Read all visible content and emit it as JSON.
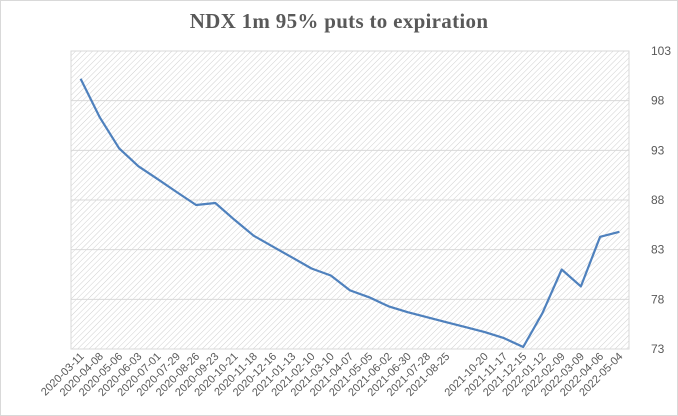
{
  "chart_data": {
    "type": "line",
    "title": "NDX 1m 95% puts to expiration",
    "xlabel": "",
    "ylabel": "",
    "ylim": [
      73,
      103
    ],
    "yticks": [
      73,
      78,
      83,
      88,
      93,
      98,
      103
    ],
    "y_axis_side": "right",
    "grid": true,
    "legend": "none",
    "plot_background": "diagonal-hatch",
    "line_color": "#4f81bd",
    "categories": [
      "2020-03-11",
      "2020-04-08",
      "2020-05-06",
      "2020-06-03",
      "2020-07-01",
      "2020-07-29",
      "2020-08-26",
      "2020-09-23",
      "2020-10-21",
      "2020-11-18",
      "2020-12-16",
      "2021-01-13",
      "2021-02-10",
      "2021-03-10",
      "2021-04-07",
      "2021-05-05",
      "2021-06-02",
      "2021-06-30",
      "2021-07-28",
      "2021-08-25",
      "2021-09-22",
      "2021-10-20",
      "2021-11-17",
      "2021-12-15",
      "2022-01-12",
      "2022-02-09",
      "2022-03-09",
      "2022-04-06",
      "2022-05-04"
    ],
    "tick_labels": [
      "2020-03-11",
      "2020-04-08",
      "2020-05-06",
      "2020-06-03",
      "2020-07-01",
      "2020-07-29",
      "2020-08-26",
      "2020-09-23",
      "2020-10-21",
      "2020-11-18",
      "2020-12-16",
      "2021-01-13",
      "2021-02-10",
      "2021-03-10",
      "2021-04-07",
      "2021-05-05",
      "2021-06-02",
      "2021-06-30",
      "2021-07-28",
      "2021-08-25",
      "2021-10-20",
      "2021-11-17",
      "2021-12-15",
      "2022-01-12",
      "2022-02-09",
      "2022-03-09",
      "2022-04-06",
      "2022-05-04"
    ],
    "series": [
      {
        "values": [
          100.2,
          96.3,
          93.2,
          91.4,
          90.1,
          88.8,
          87.5,
          87.7,
          86.0,
          84.4,
          83.3,
          82.2,
          81.1,
          80.4,
          78.9,
          78.2,
          77.3,
          76.7,
          76.2,
          75.7,
          75.2,
          74.7,
          74.1,
          73.2,
          76.6,
          81.0,
          79.3,
          84.3,
          84.8
        ]
      }
    ]
  }
}
